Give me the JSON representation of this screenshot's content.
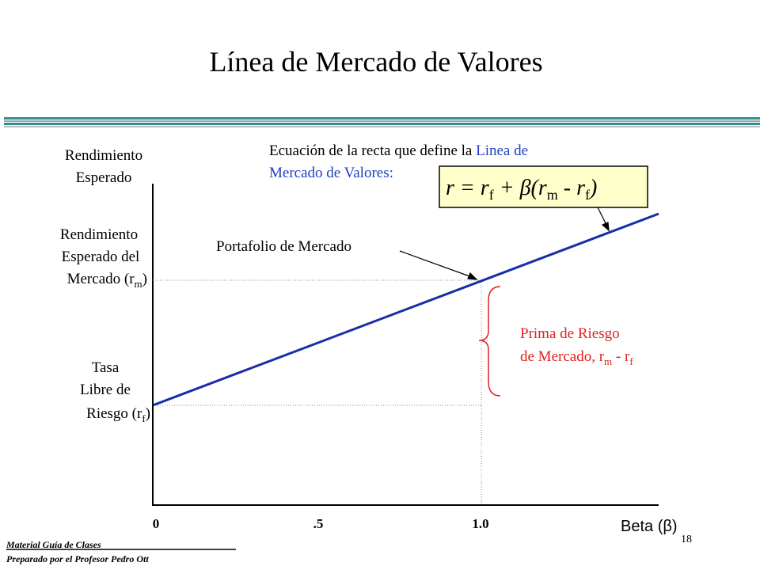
{
  "title": "Línea de Mercado de Valores",
  "y_axis_label": [
    "Rendimiento",
    "Esperado"
  ],
  "equation_caption": {
    "line1": "Ecuación de la recta que define la ",
    "line1_highlight": "Linea de",
    "line2": "Mercado de Valores:"
  },
  "equation": [
    "r = r",
    "f",
    " + β(r",
    "m",
    " - r",
    "f",
    ")"
  ],
  "market_return_label": {
    "line1": "Rendimiento",
    "line2": "Esperado del",
    "line3": "Mercado (r",
    "sub": "m",
    "close": ")"
  },
  "risk_free_label": {
    "line1": "Tasa",
    "line2": "Libre de",
    "line3": "Riesgo (r",
    "sub": "f",
    "close": ")"
  },
  "market_portfolio_label": "Portafolio de Mercado",
  "premium_label": {
    "line1": "Prima de Riesgo",
    "line2": "de Mercado, r",
    "sub1": "m",
    "mid": " - r",
    "sub2": "f"
  },
  "x_ticks": [
    "0",
    ".5",
    "1.0"
  ],
  "x_axis_label": "Beta (β)",
  "footer": {
    "line1": "Material Guía de Clases",
    "line2": "Preparado por el Profesor Pedro Ott",
    "page": "18"
  }
}
